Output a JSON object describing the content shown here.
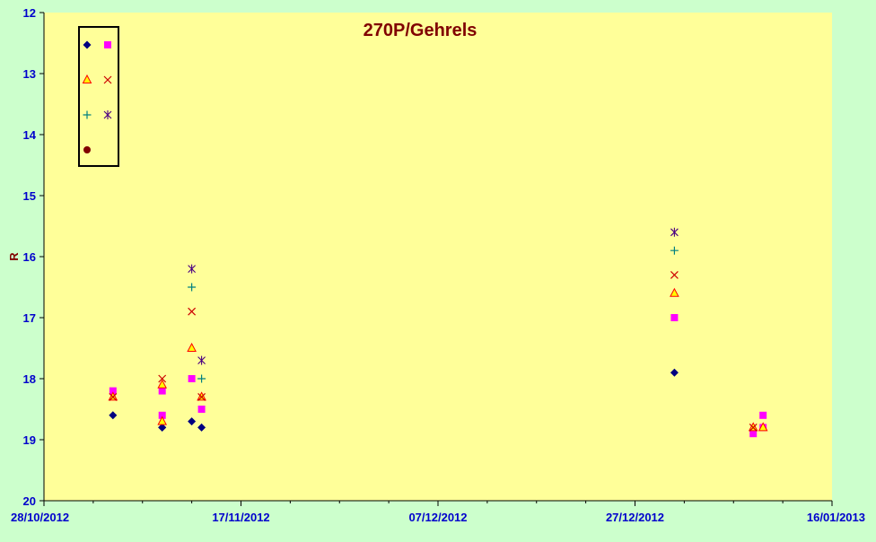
{
  "chart_data": {
    "type": "scatter",
    "title": "270P/Gehrels",
    "xlabel": "",
    "ylabel": "R",
    "x_ticks": [
      "28/10/2012",
      "17/11/2012",
      "07/12/2012",
      "27/12/2012",
      "16/01/2013"
    ],
    "y_ticks": [
      "12",
      "13",
      "14",
      "15",
      "16",
      "17",
      "18",
      "19",
      "20"
    ],
    "xlim": [
      "2012-10-28",
      "2013-01-16"
    ],
    "ylim": [
      12,
      20
    ],
    "y_inverted": true,
    "grid": false,
    "legend_position": "top-left",
    "colors": {
      "plot_background": "#ffff99",
      "outer_background": "#ccffcc",
      "title": "#800000",
      "axis_text": "#0000cc",
      "ylabel": "#800000"
    },
    "series": [
      {
        "marker": "diamond",
        "color": "#000080",
        "points": [
          [
            "2012-11-04",
            18.6
          ],
          [
            "2012-11-09",
            18.8
          ],
          [
            "2012-11-09",
            18.8
          ],
          [
            "2012-11-12",
            18.7
          ],
          [
            "2012-11-13",
            18.8
          ],
          [
            "2012-12-31",
            17.9
          ]
        ]
      },
      {
        "marker": "square",
        "color": "#ff00ff",
        "points": [
          [
            "2012-11-04",
            18.2
          ],
          [
            "2012-11-09",
            18.6
          ],
          [
            "2012-11-09",
            18.2
          ],
          [
            "2012-11-12",
            18.0
          ],
          [
            "2012-11-13",
            18.5
          ],
          [
            "2012-12-31",
            17.0
          ],
          [
            "2013-01-08",
            18.9
          ],
          [
            "2013-01-09",
            18.8
          ],
          [
            "2013-01-09",
            18.6
          ]
        ]
      },
      {
        "marker": "triangle",
        "color": "#ff0000",
        "fill": "#ffff00",
        "points": [
          [
            "2012-11-04",
            18.3
          ],
          [
            "2012-11-09",
            18.7
          ],
          [
            "2012-11-09",
            18.1
          ],
          [
            "2012-11-12",
            17.5
          ],
          [
            "2012-11-13",
            18.3
          ],
          [
            "2012-12-31",
            16.6
          ],
          [
            "2013-01-08",
            18.8
          ],
          [
            "2013-01-09",
            18.8
          ]
        ]
      },
      {
        "marker": "x",
        "color": "#cc0000",
        "points": [
          [
            "2012-11-04",
            18.3
          ],
          [
            "2012-11-09",
            18.0
          ],
          [
            "2012-11-12",
            16.9
          ],
          [
            "2012-11-13",
            18.3
          ],
          [
            "2012-12-31",
            16.3
          ],
          [
            "2013-01-08",
            18.8
          ]
        ]
      },
      {
        "marker": "plus",
        "color": "#008080",
        "points": [
          [
            "2012-11-12",
            16.5
          ],
          [
            "2012-11-13",
            18.0
          ],
          [
            "2012-12-31",
            15.9
          ]
        ]
      },
      {
        "marker": "star",
        "color": "#4b0082",
        "points": [
          [
            "2012-11-12",
            16.2
          ],
          [
            "2012-11-13",
            17.7
          ],
          [
            "2012-12-31",
            15.6
          ]
        ]
      },
      {
        "marker": "circle",
        "color": "#800000",
        "points": []
      }
    ]
  }
}
